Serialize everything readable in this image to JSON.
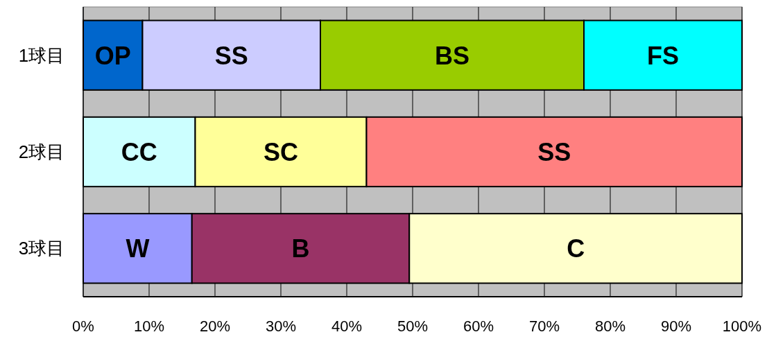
{
  "chart_data": {
    "type": "bar",
    "orientation": "horizontal",
    "stacked": true,
    "categories": [
      "1球目",
      "2球目",
      "3球目"
    ],
    "xlim": [
      0,
      100
    ],
    "xticks": [
      {
        "value": 0,
        "label": "0%"
      },
      {
        "value": 10,
        "label": "10%"
      },
      {
        "value": 20,
        "label": "20%"
      },
      {
        "value": 30,
        "label": "30%"
      },
      {
        "value": 40,
        "label": "40%"
      },
      {
        "value": 50,
        "label": "50%"
      },
      {
        "value": 60,
        "label": "60%"
      },
      {
        "value": 70,
        "label": "70%"
      },
      {
        "value": 80,
        "label": "80%"
      },
      {
        "value": 90,
        "label": "90%"
      },
      {
        "value": 100,
        "label": "100%"
      }
    ],
    "grid": "x",
    "series": [
      {
        "name": "OP",
        "color": "#0066cc",
        "values": [
          9,
          null,
          null
        ]
      },
      {
        "name": "SS",
        "color": "#ccccff",
        "values": [
          27,
          null,
          null
        ]
      },
      {
        "name": "BS",
        "color": "#99cc00",
        "values": [
          40,
          null,
          null
        ]
      },
      {
        "name": "FS",
        "color": "#00ffff",
        "values": [
          24,
          null,
          null
        ]
      },
      {
        "name": "CC",
        "color": "#ccffff",
        "values": [
          null,
          17,
          null
        ]
      },
      {
        "name": "SC",
        "color": "#ffff99",
        "values": [
          null,
          26,
          null
        ]
      },
      {
        "name": "SS",
        "color": "#ff8080",
        "values": [
          null,
          57,
          null
        ]
      },
      {
        "name": "W",
        "color": "#9999ff",
        "values": [
          null,
          null,
          16.5
        ]
      },
      {
        "name": "B",
        "color": "#993366",
        "values": [
          null,
          null,
          33
        ]
      },
      {
        "name": "C",
        "color": "#ffffcc",
        "values": [
          null,
          null,
          50.5
        ]
      }
    ]
  }
}
